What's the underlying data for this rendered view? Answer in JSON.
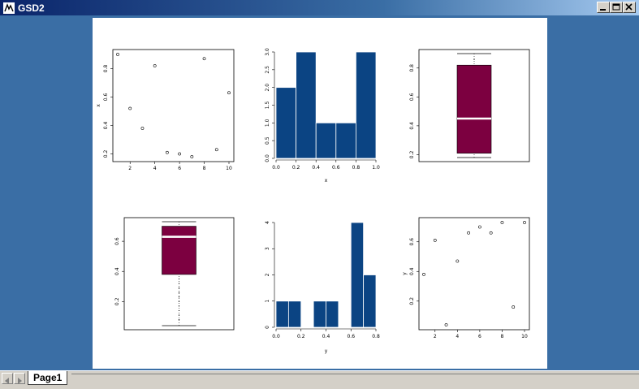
{
  "window": {
    "title": "GSD2"
  },
  "tabs": [
    {
      "label": "Page1"
    }
  ],
  "colors": {
    "bar": "#0b4483",
    "box": "#7c0040",
    "median": "#ffffff",
    "desktop": "#3a6ea5"
  },
  "plots": {
    "scatter_x": {
      "ylabel": "x",
      "xticks": [
        "2",
        "4",
        "6",
        "8",
        "10"
      ],
      "yticks": [
        "0.2",
        "0.4",
        "0.6",
        "0.8"
      ]
    },
    "hist_x": {
      "xlabel": "x",
      "xticks": [
        "0.0",
        "0.2",
        "0.4",
        "0.6",
        "0.8",
        "1.0"
      ],
      "yticks": [
        "0.0",
        "0.5",
        "1.0",
        "1.5",
        "2.0",
        "2.5",
        "3.0"
      ]
    },
    "box_x": {
      "yticks": [
        "0.2",
        "0.4",
        "0.6",
        "0.8"
      ]
    },
    "box_y": {
      "yticks": [
        "0.2",
        "0.4",
        "0.6"
      ]
    },
    "hist_y": {
      "xlabel": "y",
      "xticks": [
        "0.0",
        "0.2",
        "0.4",
        "0.6",
        "0.8"
      ],
      "yticks": [
        "0",
        "1",
        "2",
        "3",
        "4"
      ]
    },
    "scatter_y": {
      "ylabel": "y",
      "xticks": [
        "2",
        "4",
        "6",
        "8",
        "10"
      ],
      "yticks": [
        "0.2",
        "0.4",
        "0.6"
      ]
    }
  },
  "chart_data": [
    {
      "type": "scatter",
      "ylabel": "x",
      "x": [
        1,
        2,
        3,
        4,
        5,
        6,
        7,
        8,
        9,
        10
      ],
      "y": [
        0.9,
        0.52,
        0.38,
        0.82,
        0.21,
        0.2,
        0.18,
        0.87,
        0.23,
        0.63
      ],
      "xlim": [
        1,
        10
      ],
      "ylim": [
        0.18,
        0.9
      ]
    },
    {
      "type": "bar",
      "xlabel": "x",
      "bins": [
        [
          0,
          0.2
        ],
        [
          0.2,
          0.4
        ],
        [
          0.4,
          0.6
        ],
        [
          0.6,
          0.8
        ],
        [
          0.8,
          1.0
        ]
      ],
      "values": [
        2,
        3,
        1,
        1,
        3
      ],
      "ylim": [
        0,
        3
      ]
    },
    {
      "type": "box",
      "whisker_low": 0.18,
      "q1": 0.21,
      "median": 0.45,
      "q3": 0.82,
      "whisker_high": 0.9,
      "outliers": [
        0.86
      ],
      "ylim": [
        0.18,
        0.9
      ]
    },
    {
      "type": "box",
      "whisker_low": 0.04,
      "q1": 0.38,
      "median": 0.63,
      "q3": 0.7,
      "whisker_high": 0.73,
      "outliers": [
        0.08,
        0.11,
        0.14,
        0.17,
        0.2,
        0.23,
        0.26,
        0.29,
        0.32,
        0.35
      ],
      "ylim": [
        0.04,
        0.73
      ]
    },
    {
      "type": "bar",
      "xlabel": "y",
      "bins": [
        [
          0.0,
          0.1
        ],
        [
          0.1,
          0.2
        ],
        [
          0.3,
          0.4
        ],
        [
          0.4,
          0.5
        ],
        [
          0.6,
          0.7
        ],
        [
          0.7,
          0.8
        ]
      ],
      "values": [
        1,
        1,
        1,
        1,
        4,
        2
      ],
      "ylim": [
        0,
        4
      ]
    },
    {
      "type": "scatter",
      "ylabel": "y",
      "x": [
        1,
        2,
        3,
        4,
        5,
        6,
        7,
        8,
        9,
        10
      ],
      "y": [
        0.38,
        0.61,
        0.04,
        0.47,
        0.66,
        0.7,
        0.66,
        0.73,
        0.16,
        0.73
      ],
      "xlim": [
        1,
        10
      ],
      "ylim": [
        0.04,
        0.73
      ]
    }
  ]
}
